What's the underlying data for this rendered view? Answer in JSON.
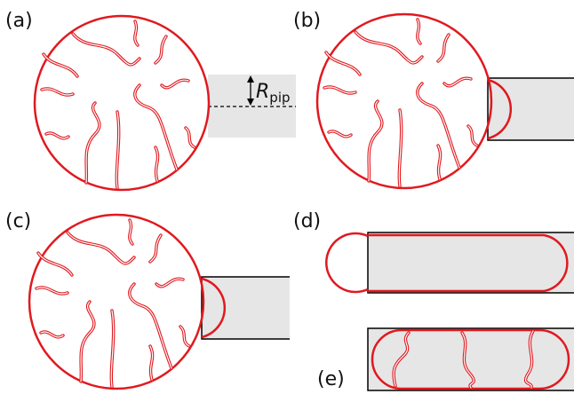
{
  "panels": [
    {
      "label": "(a)"
    },
    {
      "label": "(b)"
    },
    {
      "label": "(c)"
    },
    {
      "label": "(d)"
    },
    {
      "label": "(e)"
    }
  ],
  "annotation": {
    "symbol": "R",
    "subscript": "pip"
  }
}
